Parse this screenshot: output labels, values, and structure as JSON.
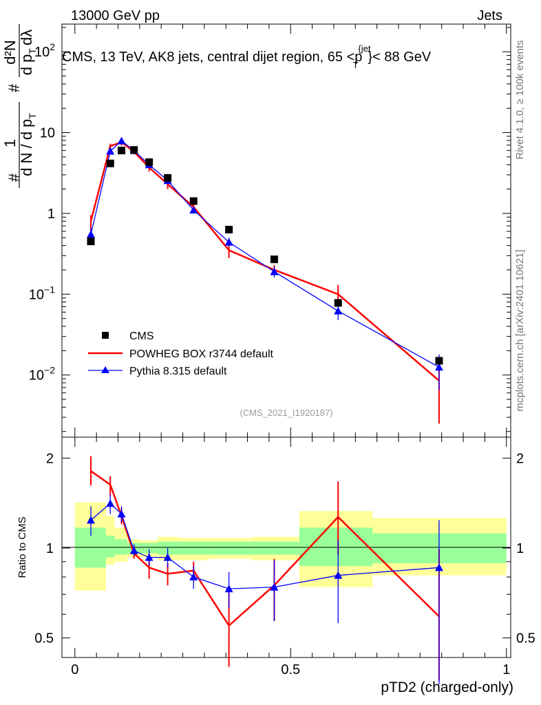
{
  "header": {
    "energy_label": "13000 GeV pp",
    "category_label": "Jets",
    "rivet_label": "Rivet 4.1.0, ≥ 100k events",
    "site_label": "mcplots.cern.ch [arXiv:2401.10621]",
    "analysis_id": "(CMS_2021_I1920187)"
  },
  "chart_data": {
    "type": "line",
    "title": "CMS, 13 TeV, AK8 jets, central dijet region, 65 <p_T^{jet}< 88 GeV",
    "title_parts": {
      "prefix": "CMS, 13 TeV, AK8 jets, central dijet region, 65 <p",
      "sup": "{jet",
      "sub": "T",
      "suffix": "}< 88 GeV"
    },
    "xlabel": "pTD2 (charged-only)",
    "xlim": [
      -0.03,
      1.01
    ],
    "x_ticks": [
      "0",
      "0.5",
      "1"
    ],
    "main_panel": {
      "ylabel": "1/(dN/dp_T) d²N/(dp_T dλ)",
      "ylabel_parts": {
        "hash1": "#",
        "num1": "1",
        "den1": "d N / d p",
        "den1_sub": "T",
        "hash2": "#",
        "num2": "d²N",
        "den2": "d p",
        "den2_sub": "T",
        "den2_rest": "dλ"
      },
      "yscale": "log",
      "ylim": [
        0.0017,
        220
      ],
      "y_ticks": [
        {
          "v": 0.01,
          "base": "10",
          "exp": "−2"
        },
        {
          "v": 0.1,
          "base": "10",
          "exp": "−1"
        },
        {
          "v": 1,
          "base": "1",
          "exp": ""
        },
        {
          "v": 10,
          "base": "10",
          "exp": ""
        },
        {
          "v": 100,
          "base": "10",
          "exp": "2"
        }
      ],
      "series": [
        {
          "name": "CMS",
          "style": "markers",
          "color": "#000000",
          "x": [
            0.037,
            0.082,
            0.108,
            0.137,
            0.172,
            0.215,
            0.275,
            0.357,
            0.462,
            0.61,
            0.844
          ],
          "y": [
            0.45,
            4.15,
            6.0,
            6.1,
            4.3,
            2.75,
            1.42,
            0.63,
            0.27,
            0.078,
            0.015
          ]
        },
        {
          "name": "POWHEG BOX r3744 default",
          "style": "line",
          "color": "#ff0000",
          "x": [
            0.037,
            0.082,
            0.108,
            0.137,
            0.172,
            0.215,
            0.275,
            0.357,
            0.462,
            0.61,
            0.844
          ],
          "y": [
            0.8,
            6.8,
            7.6,
            5.8,
            3.7,
            2.3,
            1.2,
            0.35,
            0.2,
            0.1,
            0.0085
          ],
          "err_lo": [
            0.55,
            5.9,
            6.9,
            5.4,
            3.3,
            2.0,
            1.05,
            0.28,
            0.17,
            0.075,
            0.0025
          ],
          "err_hi": [
            0.95,
            7.3,
            8.2,
            6.3,
            4.1,
            2.6,
            1.32,
            0.42,
            0.23,
            0.13,
            0.015
          ]
        },
        {
          "name": "Pythia 8.315 default",
          "style": "line-triangles",
          "color": "#0000ff",
          "x": [
            0.037,
            0.082,
            0.108,
            0.137,
            0.172,
            0.215,
            0.275,
            0.357,
            0.462,
            0.61,
            0.844
          ],
          "y": [
            0.55,
            5.9,
            7.9,
            6.0,
            4.0,
            2.55,
            1.1,
            0.44,
            0.19,
            0.062,
            0.0125
          ],
          "err_lo": [
            0.45,
            5.5,
            7.5,
            5.6,
            3.7,
            2.3,
            1.0,
            0.39,
            0.16,
            0.048,
            0.0065
          ],
          "err_hi": [
            0.66,
            6.4,
            8.3,
            6.4,
            4.3,
            2.8,
            1.2,
            0.5,
            0.22,
            0.078,
            0.018
          ]
        }
      ],
      "legend": {
        "position": "lower-left",
        "entries": [
          "CMS",
          "POWHEG BOX r3744 default",
          "Pythia 8.315 default"
        ]
      }
    },
    "ratio_panel": {
      "ylabel": "Ratio to CMS",
      "yscale": "log",
      "ylim": [
        0.43,
        2.35
      ],
      "y_ticks": [
        {
          "v": 0.5,
          "label": "0.5"
        },
        {
          "v": 1,
          "label": "1"
        },
        {
          "v": 2,
          "label": "2"
        }
      ],
      "bands": [
        {
          "x0": 0.0,
          "x1": 0.072,
          "y_lo": 0.72,
          "y_hi": 1.42,
          "g_lo": 0.86,
          "g_hi": 1.17
        },
        {
          "x0": 0.072,
          "x1": 0.092,
          "y_lo": 0.88,
          "y_hi": 1.28,
          "g_lo": 0.93,
          "g_hi": 1.1
        },
        {
          "x0": 0.092,
          "x1": 0.122,
          "y_lo": 0.9,
          "y_hi": 1.17,
          "g_lo": 0.95,
          "g_hi": 1.07
        },
        {
          "x0": 0.122,
          "x1": 0.152,
          "y_lo": 0.93,
          "y_hi": 1.07,
          "g_lo": 0.96,
          "g_hi": 1.04
        },
        {
          "x0": 0.152,
          "x1": 0.192,
          "y_lo": 0.93,
          "y_hi": 1.06,
          "g_lo": 0.96,
          "g_hi": 1.04
        },
        {
          "x0": 0.192,
          "x1": 0.242,
          "y_lo": 0.91,
          "y_hi": 1.09,
          "g_lo": 0.95,
          "g_hi": 1.05
        },
        {
          "x0": 0.242,
          "x1": 0.31,
          "y_lo": 0.91,
          "y_hi": 1.08,
          "g_lo": 0.95,
          "g_hi": 1.05
        },
        {
          "x0": 0.31,
          "x1": 0.41,
          "y_lo": 0.92,
          "y_hi": 1.08,
          "g_lo": 0.95,
          "g_hi": 1.05
        },
        {
          "x0": 0.41,
          "x1": 0.52,
          "y_lo": 0.91,
          "y_hi": 1.09,
          "g_lo": 0.95,
          "g_hi": 1.05
        },
        {
          "x0": 0.52,
          "x1": 0.69,
          "y_lo": 0.74,
          "y_hi": 1.33,
          "g_lo": 0.87,
          "g_hi": 1.17
        },
        {
          "x0": 0.69,
          "x1": 1.0,
          "y_lo": 0.81,
          "y_hi": 1.26,
          "g_lo": 0.89,
          "g_hi": 1.12
        }
      ],
      "series": [
        {
          "name": "POWHEG BOX r3744 default",
          "color": "#ff0000",
          "x": [
            0.037,
            0.082,
            0.108,
            0.137,
            0.172,
            0.215,
            0.275,
            0.357,
            0.462,
            0.61,
            0.844
          ],
          "y": [
            1.81,
            1.63,
            1.28,
            0.96,
            0.86,
            0.82,
            0.84,
            0.55,
            0.75,
            1.27,
            0.59
          ],
          "err_lo": [
            1.62,
            1.5,
            1.2,
            0.92,
            0.79,
            0.75,
            0.78,
            0.4,
            0.57,
            0.95,
            0.36
          ],
          "err_hi": [
            2.03,
            1.74,
            1.36,
            1.0,
            0.93,
            0.89,
            0.9,
            0.71,
            0.92,
            1.67,
            0.99
          ]
        },
        {
          "name": "Pythia 8.315 default",
          "color": "#0000ff",
          "x": [
            0.037,
            0.082,
            0.108,
            0.137,
            0.172,
            0.215,
            0.275,
            0.357,
            0.462,
            0.61,
            0.844
          ],
          "y": [
            1.24,
            1.41,
            1.3,
            0.98,
            0.93,
            0.93,
            0.8,
            0.73,
            0.74,
            0.81,
            0.86
          ],
          "err_lo": [
            1.1,
            1.3,
            1.22,
            0.94,
            0.87,
            0.86,
            0.73,
            0.63,
            0.57,
            0.56,
            0.35
          ],
          "err_hi": [
            1.38,
            1.51,
            1.38,
            1.03,
            0.99,
            1.0,
            0.87,
            0.83,
            0.91,
            1.06,
            1.24
          ]
        }
      ]
    }
  }
}
